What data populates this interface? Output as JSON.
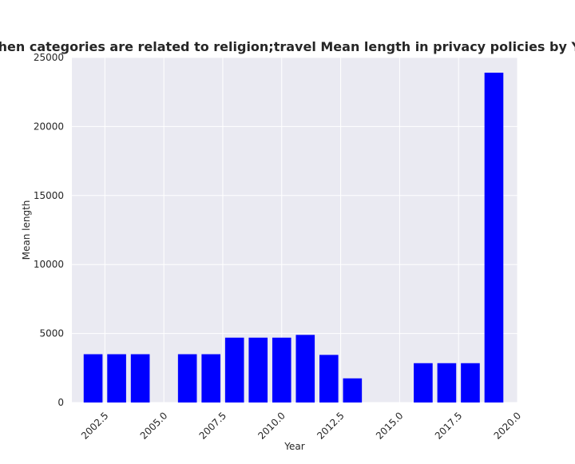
{
  "chart_data": {
    "type": "bar",
    "title": "when categories are related to religion;travel Mean length in privacy policies by Year",
    "xlabel": "Year",
    "ylabel": "Mean length",
    "x": [
      2002,
      2003,
      2004,
      2006,
      2007,
      2008,
      2009,
      2010,
      2011,
      2012,
      2013,
      2016,
      2017,
      2018,
      2019
    ],
    "values": [
      3500,
      3500,
      3500,
      3500,
      3500,
      4700,
      4700,
      4700,
      4900,
      3450,
      1750,
      2850,
      2850,
      2850,
      23900
    ],
    "xlim": [
      2001.1,
      2020.0
    ],
    "ylim": [
      0,
      25000
    ],
    "xticks": [
      2002.5,
      2005.0,
      2007.5,
      2010.0,
      2012.5,
      2015.0,
      2017.5,
      2020.0
    ],
    "xtick_labels": [
      "2002.5",
      "2005.0",
      "2007.5",
      "2010.0",
      "2012.5",
      "2015.0",
      "2017.5",
      "2020.0"
    ],
    "yticks": [
      0,
      5000,
      10000,
      15000,
      20000,
      25000
    ],
    "ytick_labels": [
      "0",
      "5000",
      "10000",
      "15000",
      "20000",
      "25000"
    ],
    "bar_color": "#0000ff",
    "background_color": "#eaeaf2",
    "grid": true,
    "legend": false
  }
}
